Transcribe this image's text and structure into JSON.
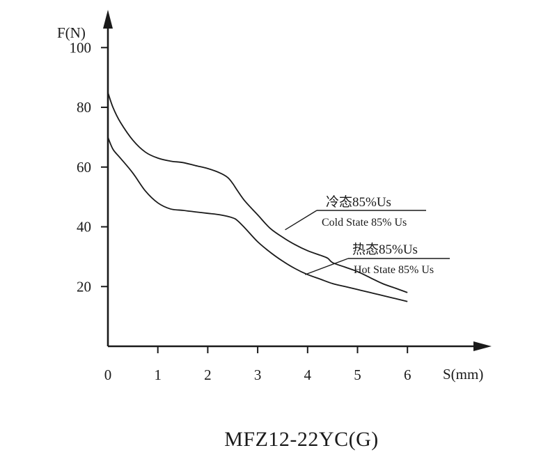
{
  "chart_data": {
    "type": "line",
    "title": "MFZ12-22YC(G)",
    "xlabel": "S(mm)",
    "ylabel": "F(N)",
    "xlim": [
      0,
      6.8
    ],
    "ylim": [
      0,
      108
    ],
    "x_ticks": [
      "0",
      "1",
      "2",
      "3",
      "4",
      "5",
      "6"
    ],
    "y_ticks": [
      "20",
      "40",
      "60",
      "80",
      "100"
    ],
    "grid": false,
    "series": [
      {
        "name": "冷态85%Us",
        "subname": "Cold State 85% Us",
        "x": [
          0,
          0.1,
          0.25,
          0.5,
          0.75,
          1.0,
          1.25,
          1.5,
          1.75,
          2.0,
          2.25,
          2.4,
          2.5,
          2.6,
          2.75,
          3.0,
          3.25,
          3.5,
          3.75,
          4.0,
          4.25,
          4.4,
          4.5,
          4.75,
          5.0,
          5.25,
          5.5,
          5.75,
          6.0
        ],
        "y": [
          85,
          80,
          75,
          69,
          65,
          63,
          62,
          61.5,
          60.5,
          59.5,
          58,
          56.5,
          54.5,
          52,
          48.5,
          44,
          39.5,
          36.5,
          34,
          32,
          30.5,
          29.5,
          28,
          26.5,
          25,
          23,
          21,
          19.5,
          18
        ]
      },
      {
        "name": "热态85%Us",
        "subname": "Hot State 85% Us",
        "x": [
          0,
          0.1,
          0.25,
          0.5,
          0.75,
          1.0,
          1.25,
          1.5,
          1.75,
          2.0,
          2.25,
          2.5,
          2.6,
          2.75,
          3.0,
          3.25,
          3.5,
          3.75,
          4.0,
          4.25,
          4.5,
          4.75,
          5.0,
          5.25,
          5.5,
          5.75,
          6.0
        ],
        "y": [
          70,
          66,
          63,
          58,
          52,
          48,
          46,
          45.5,
          45,
          44.5,
          44,
          43,
          42,
          39.5,
          35,
          31.5,
          28.5,
          26,
          24,
          22.5,
          21,
          20,
          19,
          18,
          17,
          16,
          15
        ]
      }
    ],
    "annotations": [
      {
        "series": 0,
        "cn": "冷态85%Us",
        "en": "Cold State 85% Us",
        "point": [
          3.55,
          39
        ]
      },
      {
        "series": 1,
        "cn": "热态85%Us",
        "en": "Hot State 85% Us",
        "point": [
          3.95,
          24
        ]
      }
    ],
    "colors": {
      "line": "#1a1a1a",
      "background": "#ffffff"
    }
  }
}
